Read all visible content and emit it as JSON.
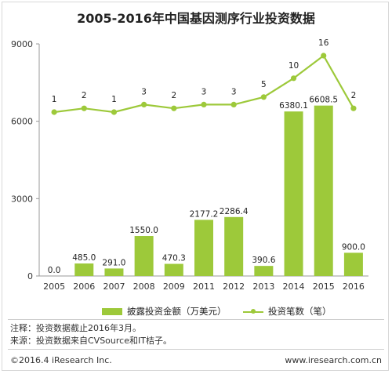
{
  "chart_data": {
    "type": "bar",
    "title": "2005-2016年中国基因测序行业投资数据",
    "categories": [
      "2005",
      "2006",
      "2007",
      "2008",
      "2009",
      "2011",
      "2012",
      "2013",
      "2014",
      "2015",
      "2016"
    ],
    "series": [
      {
        "name": "披露投资金额（万美元）",
        "type": "bar",
        "values": [
          0.0,
          485.0,
          291.0,
          1550.0,
          470.3,
          2177.2,
          2286.4,
          390.6,
          6380.1,
          6608.5,
          900.0
        ],
        "labels": [
          "0.0",
          "485.0",
          "291.0",
          "1550.0",
          "470.3",
          "2177.2",
          "2286.4",
          "390.6",
          "6380.1",
          "6608.5",
          "900.0"
        ]
      },
      {
        "name": "投资笔数（笔）",
        "type": "line",
        "values": [
          1,
          2,
          1,
          3,
          2,
          3,
          3,
          5,
          10,
          16,
          2
        ]
      }
    ],
    "yticks": [
      "0",
      "3000",
      "6000",
      "9000"
    ],
    "ylim": [
      0,
      9000
    ],
    "legend_position": "bottom",
    "color": "#9dc93a"
  },
  "notes": {
    "note1": "注释：投资数据截止2016年3月。",
    "note2": "来源：投资数据来自CVSource和IT桔子。"
  },
  "footer": {
    "left": "©2016.4 iResearch Inc.",
    "right": "www.iresearch.com.cn"
  }
}
